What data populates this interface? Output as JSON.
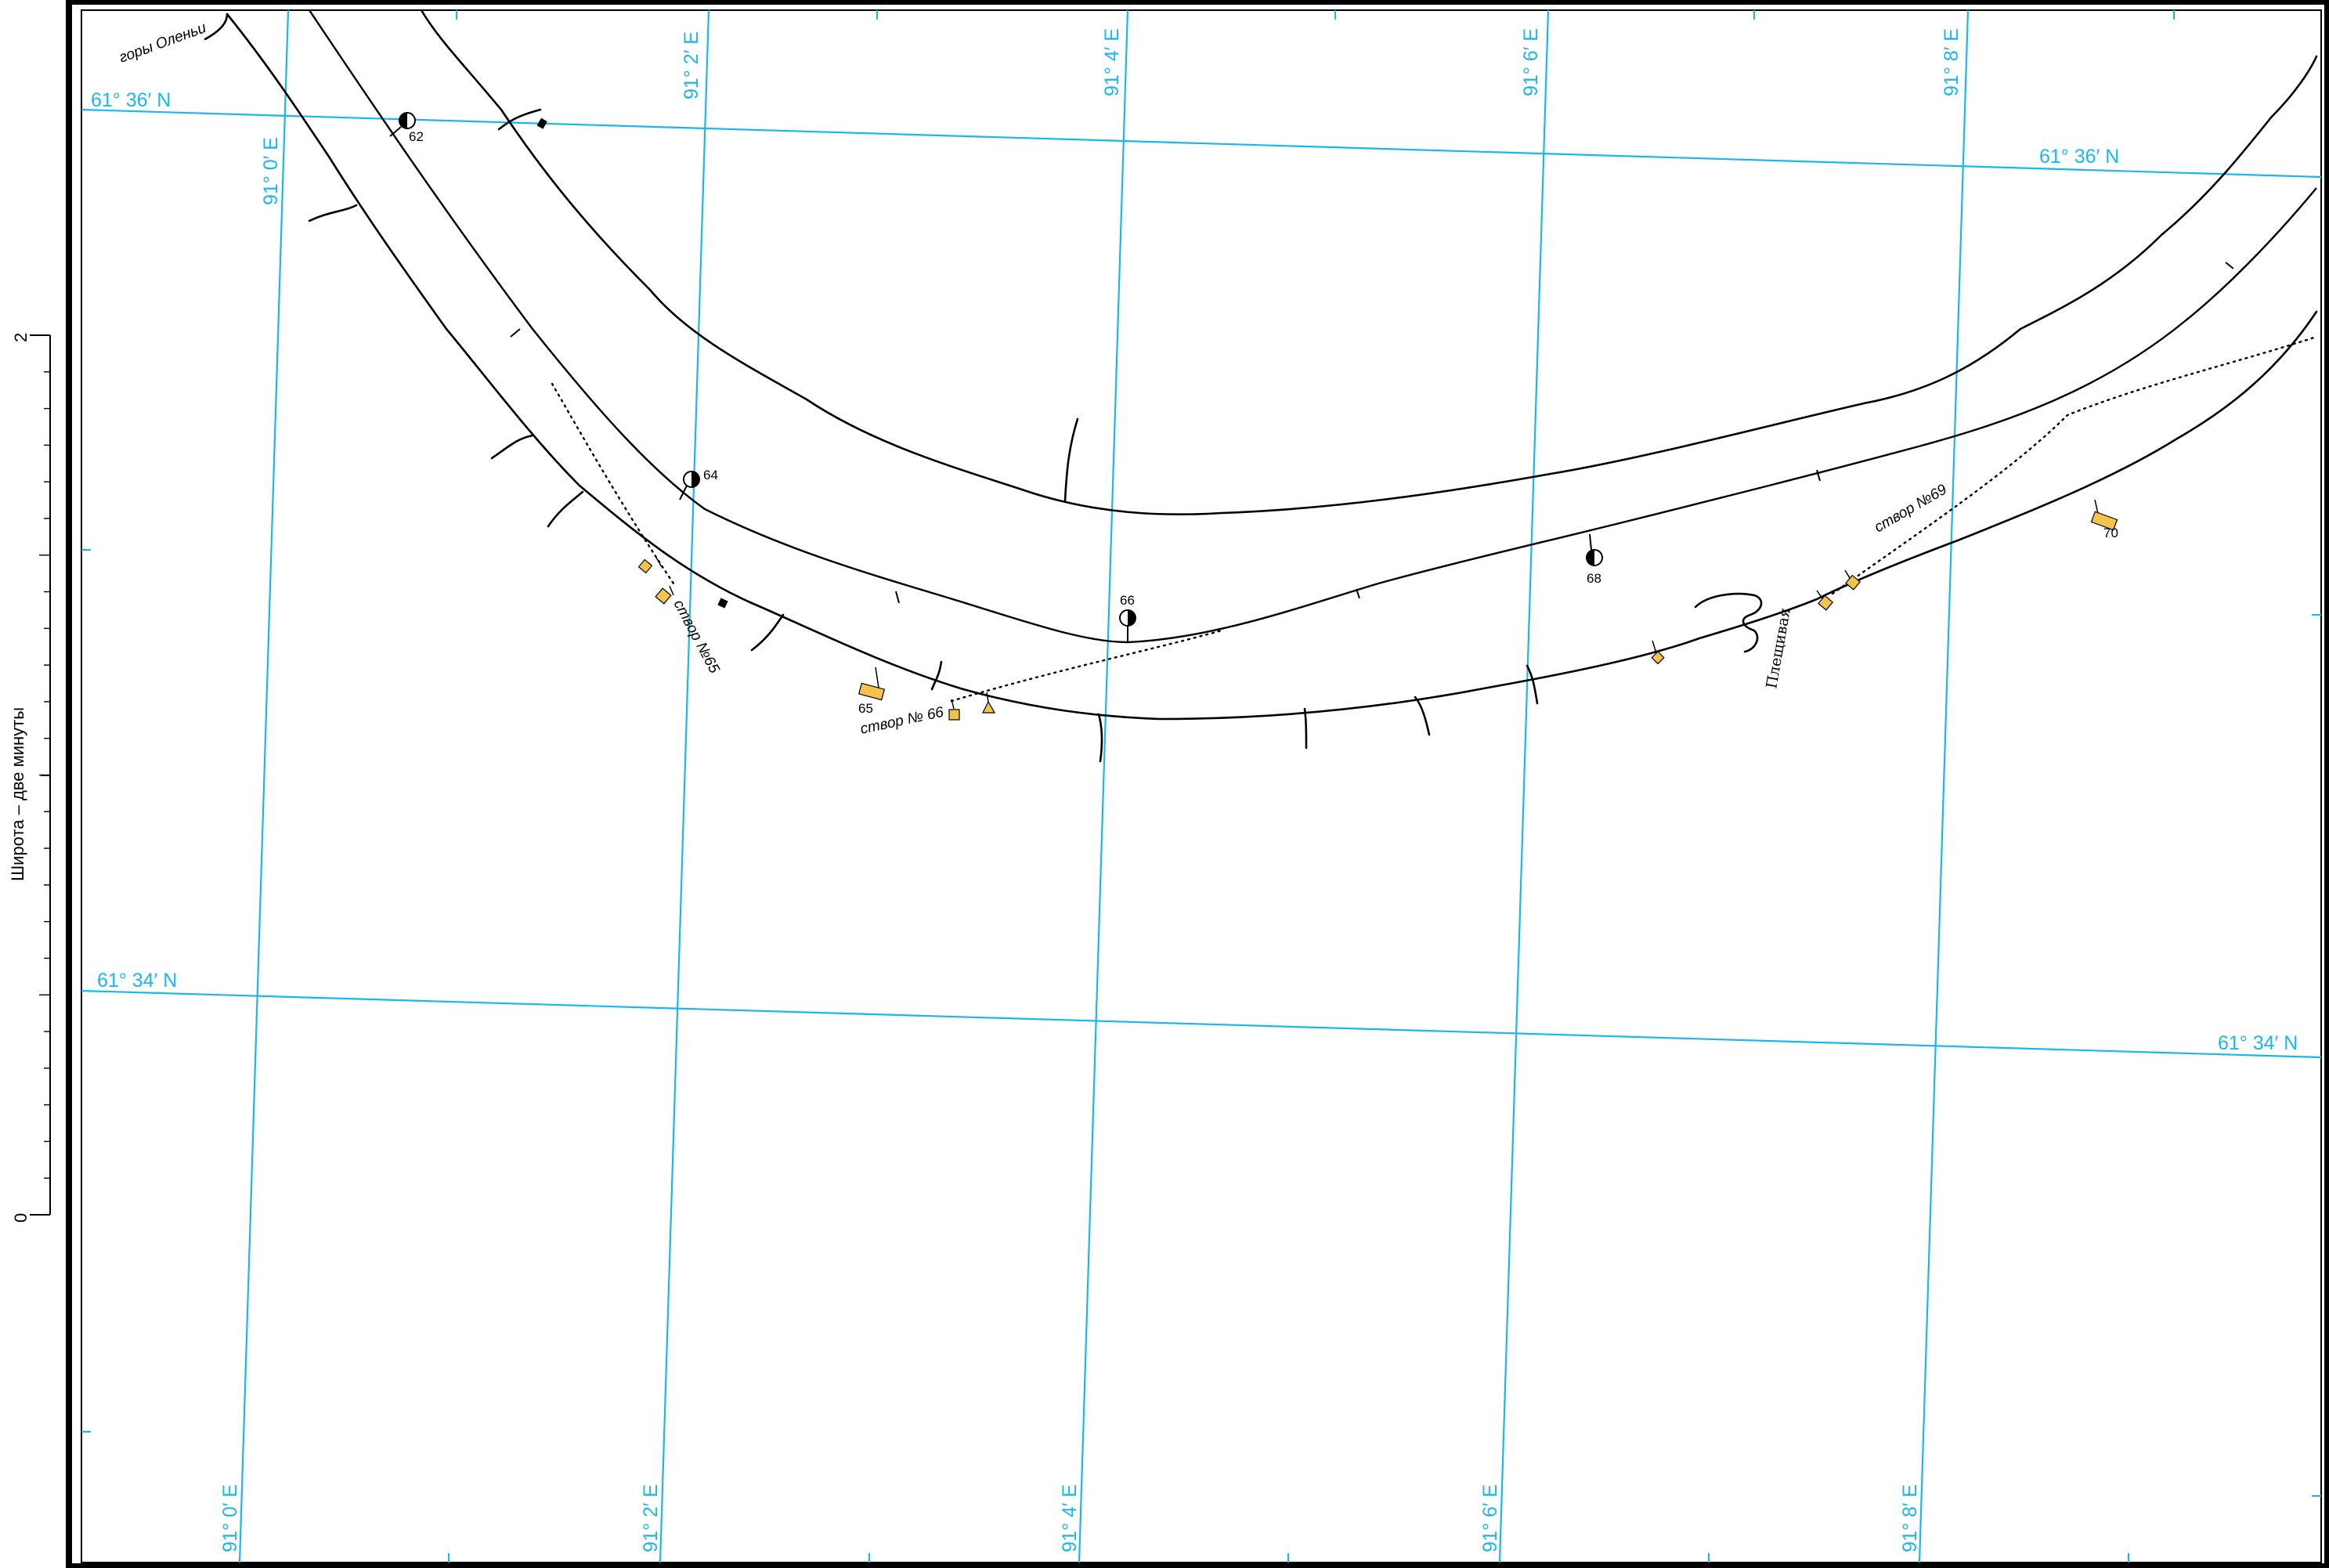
{
  "map": {
    "scale_label": "Широта – две минуты",
    "scale_ticks": [
      "2",
      "0"
    ],
    "colors": {
      "grid": "#1ab7ea",
      "river": "#000000",
      "sign_fill": "#f3c34b",
      "background": "#ffffff"
    },
    "grid_labels": {
      "lat_north": "61° 36′ N",
      "lat_south": "61° 34′ N",
      "lon_0": "91° 0′ E",
      "lon_2": "91° 2′ E",
      "lon_4": "91° 4′ E",
      "lon_6": "91° 6′ E",
      "lon_8": "91° 8′ E"
    },
    "place_names": {
      "mountains": "горы Оленьи",
      "creek": "Плещивая"
    },
    "alignments": [
      "створ №65",
      "створ № 66",
      "створ №69"
    ],
    "buoys": [
      {
        "number": "62",
        "icon": "half-filled-circle-buoy"
      },
      {
        "number": "64",
        "icon": "half-filled-circle-buoy"
      },
      {
        "number": "66",
        "icon": "half-filled-circle-buoy"
      },
      {
        "number": "68",
        "icon": "half-filled-circle-buoy"
      }
    ],
    "kilometer_signs": [
      "65",
      "70"
    ]
  }
}
